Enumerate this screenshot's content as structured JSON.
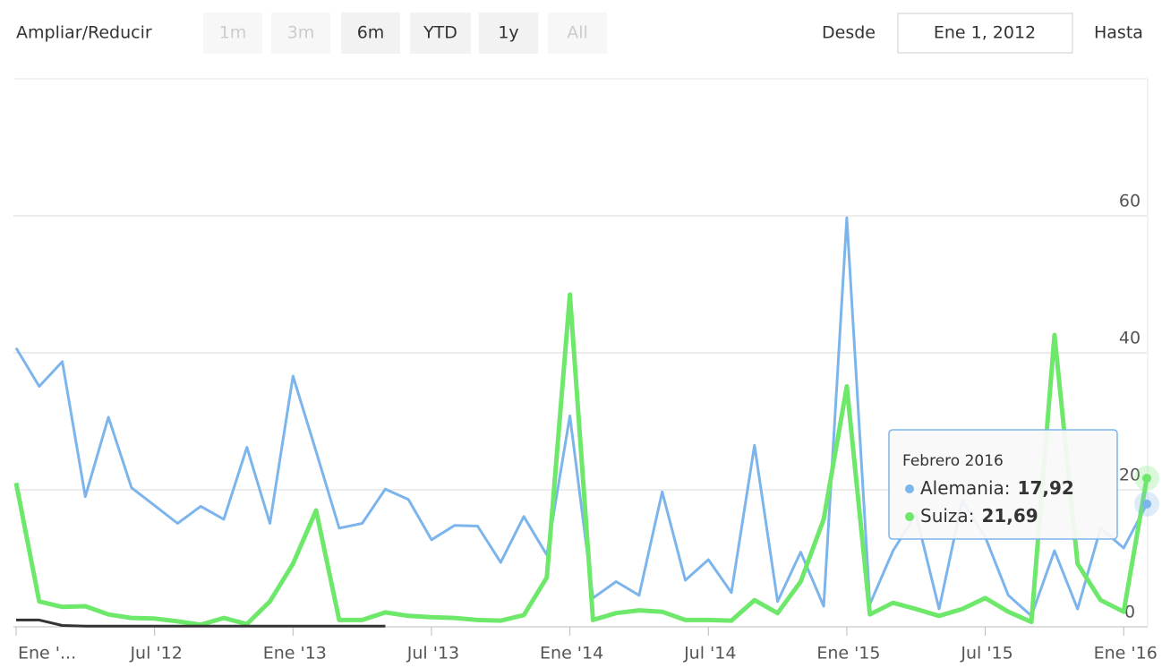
{
  "range_selector": {
    "zoom_label": "Ampliar/Reducir",
    "buttons": [
      {
        "label": "1m",
        "enabled": false
      },
      {
        "label": "3m",
        "enabled": false
      },
      {
        "label": "6m",
        "enabled": true
      },
      {
        "label": "YTD",
        "enabled": true
      },
      {
        "label": "1y",
        "enabled": true
      },
      {
        "label": "All",
        "enabled": false
      }
    ],
    "from_label": "Desde",
    "from_value": "Ene 1, 2012",
    "to_label": "Hasta"
  },
  "chart_data": {
    "type": "line",
    "x": [
      "2012-01",
      "2012-02",
      "2012-03",
      "2012-04",
      "2012-05",
      "2012-06",
      "2012-07",
      "2012-08",
      "2012-09",
      "2012-10",
      "2012-11",
      "2012-12",
      "2013-01",
      "2013-02",
      "2013-03",
      "2013-04",
      "2013-05",
      "2013-06",
      "2013-07",
      "2013-08",
      "2013-09",
      "2013-10",
      "2013-11",
      "2013-12",
      "2014-01",
      "2014-02",
      "2014-03",
      "2014-04",
      "2014-05",
      "2014-06",
      "2014-07",
      "2014-08",
      "2014-09",
      "2014-10",
      "2014-11",
      "2014-12",
      "2015-01",
      "2015-02",
      "2015-03",
      "2015-04",
      "2015-05",
      "2015-06",
      "2015-07",
      "2015-08",
      "2015-09",
      "2015-10",
      "2015-11",
      "2015-12",
      "2016-01",
      "2016-02"
    ],
    "series": [
      {
        "name": "Alemania",
        "color": "#7cb5ec",
        "values": [
          40.7,
          35.1,
          38.7,
          19.0,
          30.6,
          20.3,
          17.7,
          15.1,
          17.6,
          15.7,
          26.2,
          15.1,
          36.6,
          25.6,
          14.4,
          15.1,
          20.1,
          18.6,
          12.7,
          14.8,
          14.7,
          9.4,
          16.1,
          10.5,
          30.8,
          4.2,
          6.6,
          4.6,
          19.7,
          6.8,
          9.8,
          5.0,
          26.5,
          3.7,
          10.9,
          3.0,
          59.7,
          3.3,
          11.1,
          16.4,
          2.6,
          18.4,
          13.1,
          4.6,
          1.6,
          11.1,
          2.6,
          14.4,
          11.5,
          17.92
        ]
      },
      {
        "name": "Suiza",
        "color": "#6ee86a",
        "values": [
          21.0,
          3.7,
          2.9,
          3.0,
          1.8,
          1.3,
          1.2,
          0.8,
          0.3,
          1.3,
          0.4,
          3.7,
          9.2,
          17.0,
          1.0,
          1.0,
          2.1,
          1.6,
          1.4,
          1.3,
          1.0,
          0.9,
          1.7,
          7.2,
          48.5,
          1.0,
          2.0,
          2.4,
          2.2,
          1.0,
          1.0,
          0.9,
          3.9,
          2.0,
          6.6,
          15.7,
          35.1,
          1.8,
          3.5,
          2.6,
          1.6,
          2.6,
          4.2,
          2.2,
          0.7,
          42.6,
          9.2,
          3.9,
          2.2,
          21.69
        ]
      },
      {
        "color": "#333333",
        "values": [
          1.0,
          1.0,
          0.2,
          0.1,
          0.1,
          0.1,
          0.1,
          0.1,
          0.1,
          0.1,
          0.1,
          0.1,
          0.1,
          0.1,
          0.1,
          0.1,
          0.1,
          null,
          null,
          null,
          null,
          null,
          null,
          null,
          null,
          null,
          null,
          null,
          null,
          null,
          null,
          null,
          null,
          null,
          null,
          null,
          null,
          null,
          null,
          null,
          null,
          null,
          null,
          null,
          null,
          null,
          null,
          null,
          null,
          null
        ]
      }
    ],
    "ylim": [
      0,
      80
    ],
    "yticks": [
      0,
      20,
      40,
      60
    ],
    "grid": true,
    "xticks": [
      {
        "value": "2012-01",
        "label": "Ene '..."
      },
      {
        "value": "2012-07",
        "label": "Jul '12"
      },
      {
        "value": "2013-01",
        "label": "Ene '13"
      },
      {
        "value": "2013-07",
        "label": "Jul '13"
      },
      {
        "value": "2014-01",
        "label": "Ene '14"
      },
      {
        "value": "2014-07",
        "label": "Jul '14"
      },
      {
        "value": "2015-01",
        "label": "Ene '15"
      },
      {
        "value": "2015-07",
        "label": "Jul '15"
      },
      {
        "value": "2016-01",
        "label": "Ene '16"
      }
    ],
    "tooltip": {
      "title": "Febrero 2016",
      "separator": ":",
      "values": [
        "17,92",
        "21,69"
      ]
    }
  }
}
